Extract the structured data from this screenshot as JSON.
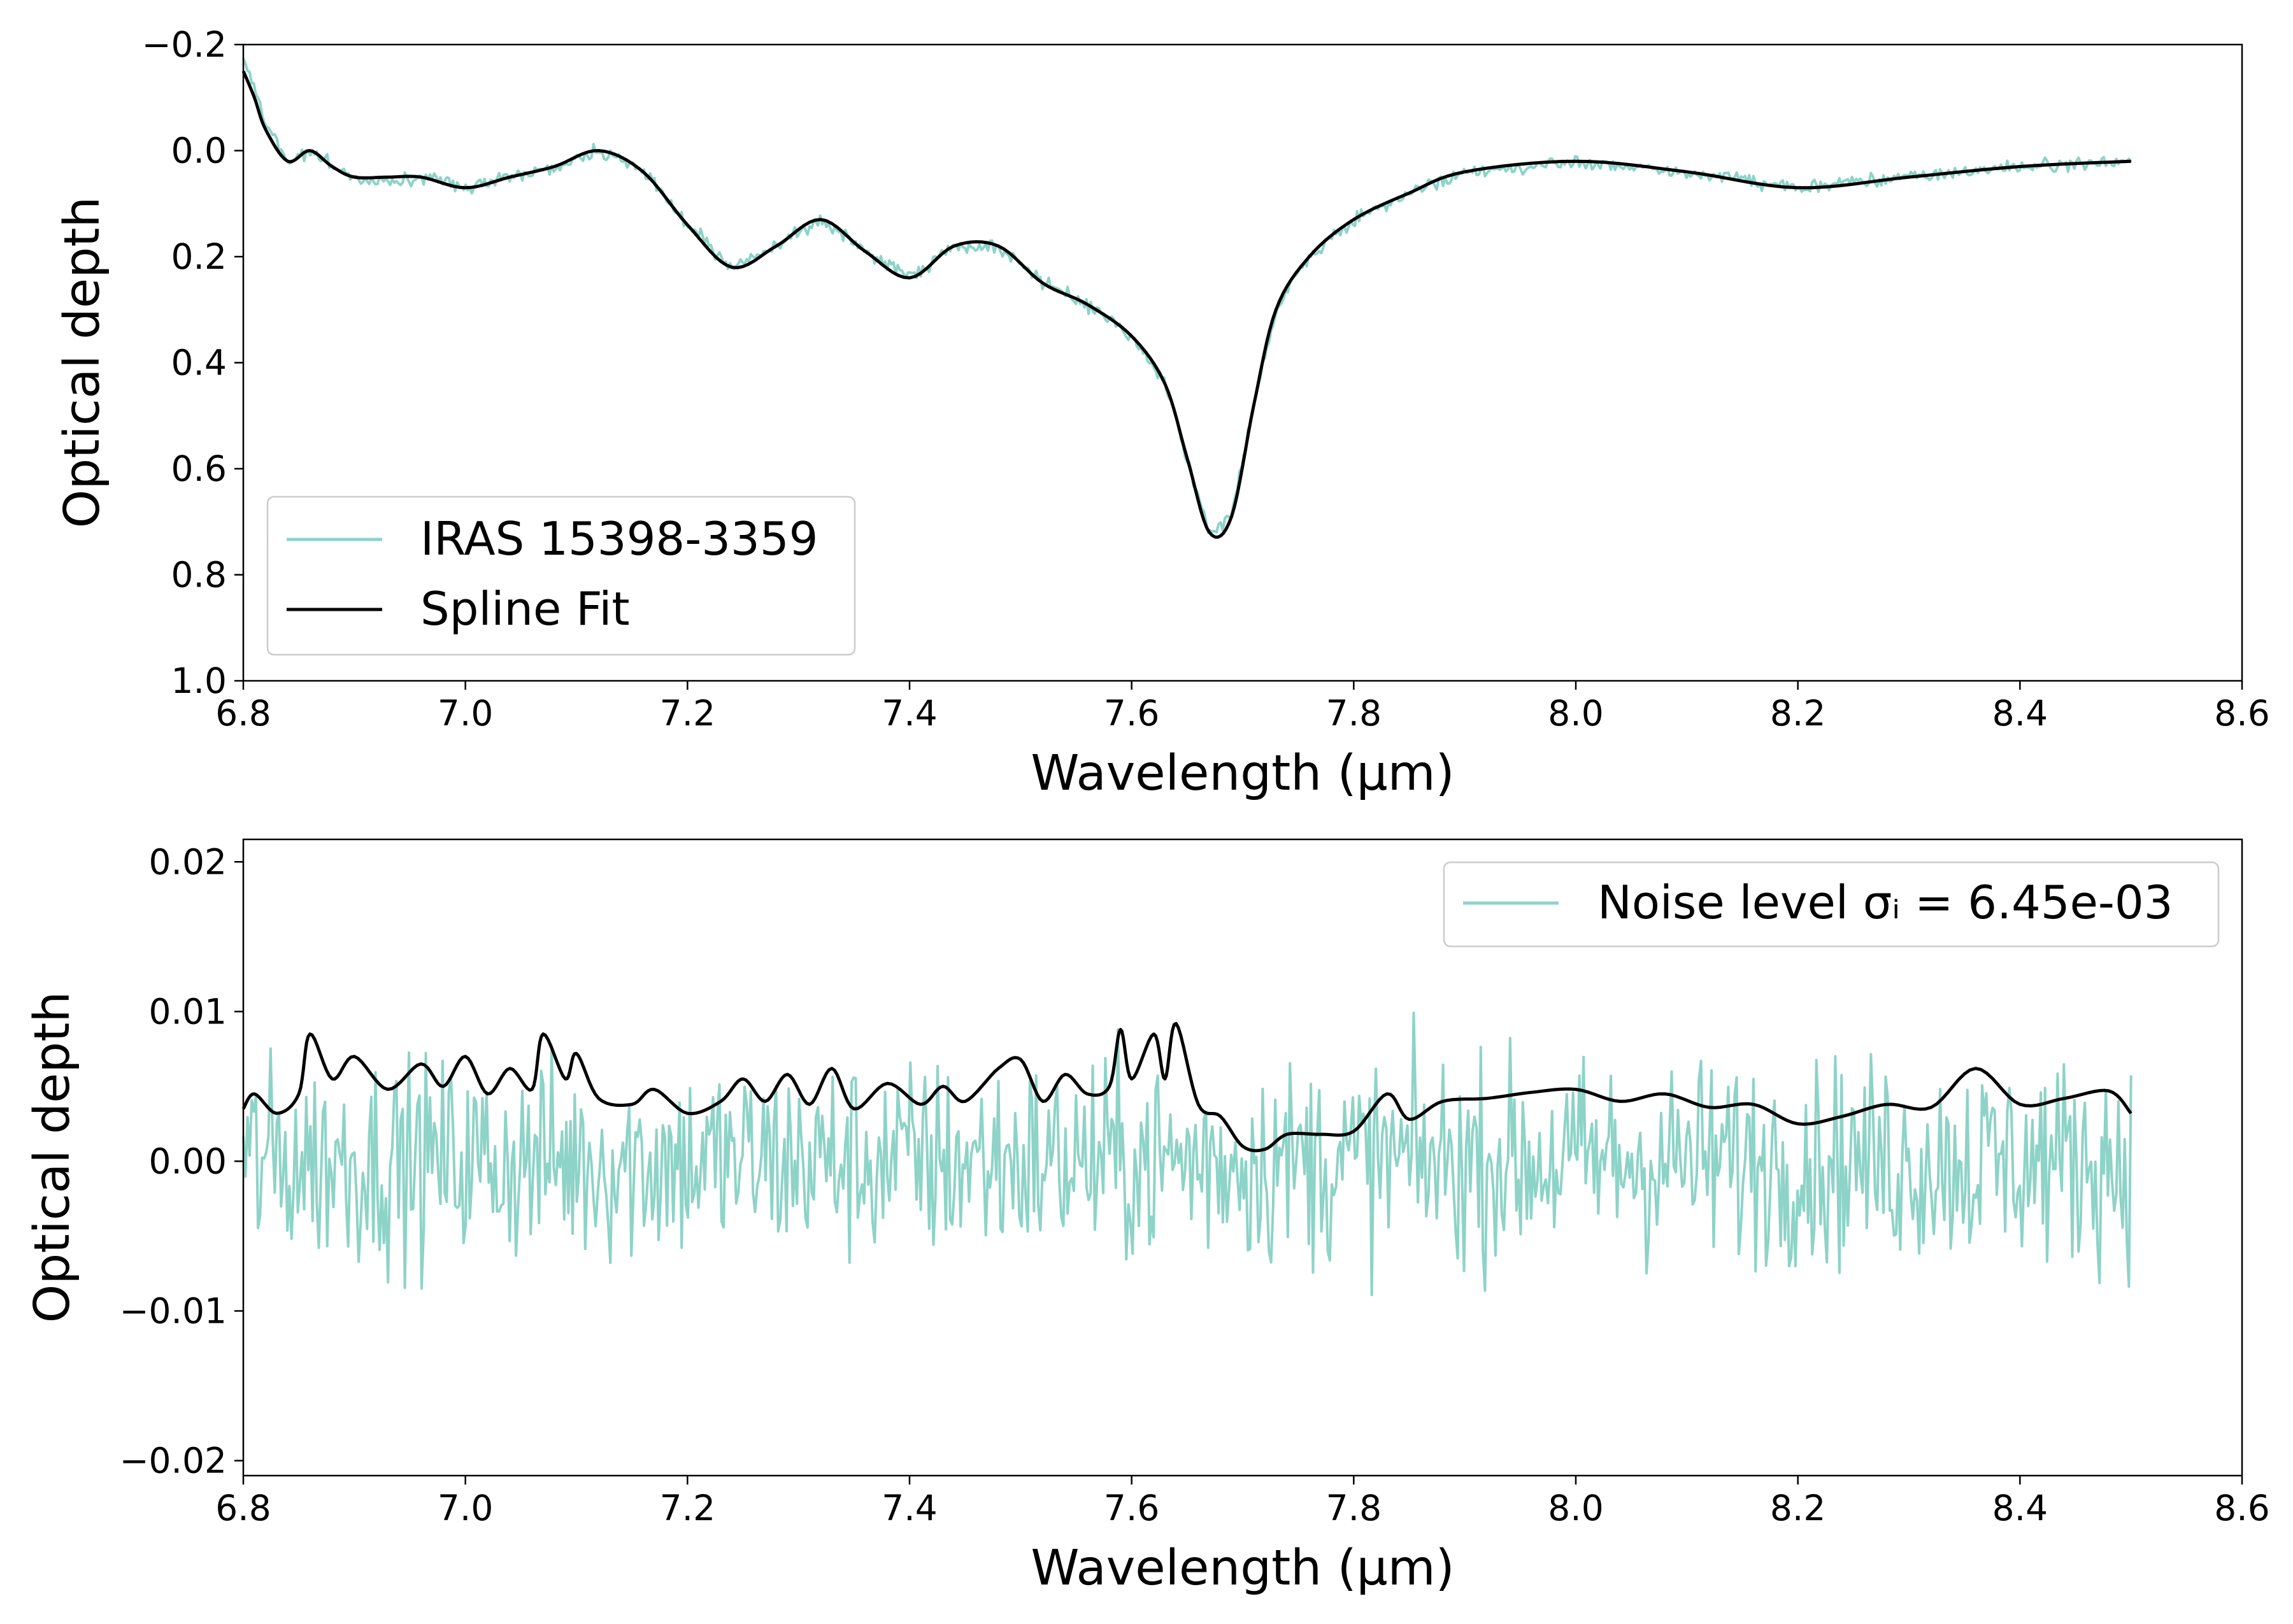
{
  "colors": {
    "spectrum": "#8dd3c7",
    "fit": "#000000",
    "axes": "#000000",
    "legend_frame": "#cccccc"
  },
  "chart_data": [
    {
      "type": "line",
      "title": "",
      "xlabel": "Wavelength (μm)",
      "ylabel": "Optical depth",
      "xlim": [
        6.8,
        8.6
      ],
      "ylim": [
        -0.2,
        1.0
      ],
      "y_inverted": true,
      "xticks": [
        6.8,
        7.0,
        7.2,
        7.4,
        7.6,
        7.8,
        8.0,
        8.2,
        8.4,
        8.6
      ],
      "xtick_labels": [
        "6.8",
        "7.0",
        "7.2",
        "7.4",
        "7.6",
        "7.8",
        "8.0",
        "8.2",
        "8.4",
        "8.6"
      ],
      "yticks": [
        -0.2,
        0.0,
        0.2,
        0.4,
        0.6,
        0.8,
        1.0
      ],
      "ytick_labels": [
        "−0.2",
        "0.0",
        "0.2",
        "0.4",
        "0.6",
        "0.8",
        "1.0"
      ],
      "grid": false,
      "legend_position": "lower-left",
      "series": [
        {
          "name": "IRAS 15398-3359",
          "color": "#8dd3c7",
          "noisy": true,
          "noise_amplitude": 0.012,
          "x": [
            6.8,
            6.81,
            6.82,
            6.84,
            6.86,
            6.88,
            6.9,
            6.93,
            6.96,
            7.0,
            7.04,
            7.08,
            7.12,
            7.16,
            7.2,
            7.24,
            7.28,
            7.32,
            7.36,
            7.4,
            7.44,
            7.48,
            7.52,
            7.56,
            7.6,
            7.63,
            7.65,
            7.67,
            7.69,
            7.71,
            7.73,
            7.76,
            7.8,
            7.85,
            7.9,
            8.0,
            8.1,
            8.2,
            8.3,
            8.4,
            8.5
          ],
          "y": [
            -0.18,
            -0.12,
            -0.05,
            0.02,
            0.0,
            0.03,
            0.05,
            0.06,
            0.05,
            0.07,
            0.05,
            0.03,
            0.0,
            0.04,
            0.14,
            0.22,
            0.18,
            0.13,
            0.19,
            0.24,
            0.18,
            0.18,
            0.25,
            0.29,
            0.35,
            0.44,
            0.58,
            0.72,
            0.69,
            0.48,
            0.3,
            0.2,
            0.13,
            0.08,
            0.04,
            0.02,
            0.04,
            0.07,
            0.05,
            0.03,
            0.02
          ]
        },
        {
          "name": "Spline Fit",
          "color": "#000000",
          "noisy": false,
          "x": [
            6.8,
            6.81,
            6.82,
            6.84,
            6.86,
            6.88,
            6.9,
            6.93,
            6.96,
            7.0,
            7.04,
            7.08,
            7.12,
            7.16,
            7.2,
            7.24,
            7.28,
            7.32,
            7.36,
            7.4,
            7.44,
            7.48,
            7.52,
            7.56,
            7.6,
            7.63,
            7.65,
            7.67,
            7.69,
            7.71,
            7.73,
            7.76,
            7.8,
            7.85,
            7.9,
            8.0,
            8.1,
            8.2,
            8.3,
            8.4,
            8.5
          ],
          "y": [
            -0.15,
            -0.1,
            -0.04,
            0.02,
            0.0,
            0.03,
            0.05,
            0.05,
            0.05,
            0.07,
            0.05,
            0.03,
            0.0,
            0.04,
            0.14,
            0.22,
            0.18,
            0.13,
            0.19,
            0.24,
            0.18,
            0.18,
            0.25,
            0.29,
            0.35,
            0.44,
            0.58,
            0.72,
            0.69,
            0.48,
            0.3,
            0.2,
            0.13,
            0.08,
            0.04,
            0.02,
            0.04,
            0.07,
            0.05,
            0.03,
            0.02
          ]
        }
      ]
    },
    {
      "type": "line",
      "title": "",
      "xlabel": "Wavelength (μm)",
      "ylabel": "Optical depth",
      "xlim": [
        6.8,
        8.6
      ],
      "ylim": [
        -0.021,
        0.0215
      ],
      "y_inverted": false,
      "xticks": [
        6.8,
        7.0,
        7.2,
        7.4,
        7.6,
        7.8,
        8.0,
        8.2,
        8.4,
        8.6
      ],
      "xtick_labels": [
        "6.8",
        "7.0",
        "7.2",
        "7.4",
        "7.6",
        "7.8",
        "8.0",
        "8.2",
        "8.4",
        "8.6"
      ],
      "yticks": [
        -0.02,
        -0.01,
        0.0,
        0.01,
        0.02
      ],
      "ytick_labels": [
        "−0.02",
        "−0.01",
        "0.00",
        "0.01",
        "0.02"
      ],
      "grid": false,
      "legend_position": "upper-right",
      "series": [
        {
          "name": "Noise level σᵢ = 6.45e-03",
          "color": "#8dd3c7",
          "noisy": true,
          "noise_amplitude": 0.0065,
          "x": [
            6.8,
            8.5
          ],
          "y": [
            0.0,
            0.0
          ]
        },
        {
          "name": "",
          "color": "#000000",
          "noisy": false,
          "x": [
            6.8,
            6.81,
            6.83,
            6.85,
            6.86,
            6.88,
            6.9,
            6.93,
            6.96,
            6.98,
            7.0,
            7.02,
            7.04,
            7.06,
            7.07,
            7.09,
            7.1,
            7.12,
            7.15,
            7.17,
            7.2,
            7.23,
            7.25,
            7.27,
            7.29,
            7.31,
            7.33,
            7.35,
            7.38,
            7.41,
            7.43,
            7.45,
            7.48,
            7.5,
            7.52,
            7.54,
            7.56,
            7.58,
            7.59,
            7.6,
            7.62,
            7.63,
            7.64,
            7.66,
            7.68,
            7.7,
            7.72,
            7.74,
            7.77,
            7.8,
            7.83,
            7.85,
            7.88,
            7.92,
            7.96,
            8.0,
            8.04,
            8.08,
            8.12,
            8.16,
            8.2,
            8.24,
            8.28,
            8.32,
            8.36,
            8.4,
            8.44,
            8.48,
            8.5
          ],
          "y": [
            0.0035,
            0.0045,
            0.0032,
            0.0045,
            0.0085,
            0.0055,
            0.007,
            0.0048,
            0.0065,
            0.005,
            0.007,
            0.0045,
            0.0062,
            0.0048,
            0.0085,
            0.0055,
            0.0072,
            0.0042,
            0.0038,
            0.0048,
            0.0032,
            0.004,
            0.0055,
            0.004,
            0.0058,
            0.0038,
            0.0062,
            0.0035,
            0.0052,
            0.0038,
            0.005,
            0.004,
            0.0062,
            0.0068,
            0.004,
            0.0058,
            0.0045,
            0.005,
            0.0088,
            0.0055,
            0.0085,
            0.0055,
            0.0092,
            0.0038,
            0.003,
            0.001,
            0.0008,
            0.0018,
            0.0018,
            0.002,
            0.0045,
            0.0028,
            0.004,
            0.0042,
            0.0046,
            0.0048,
            0.004,
            0.0045,
            0.0036,
            0.0038,
            0.0025,
            0.003,
            0.0038,
            0.0036,
            0.0062,
            0.0038,
            0.0042,
            0.0047,
            0.0032
          ]
        }
      ]
    }
  ]
}
